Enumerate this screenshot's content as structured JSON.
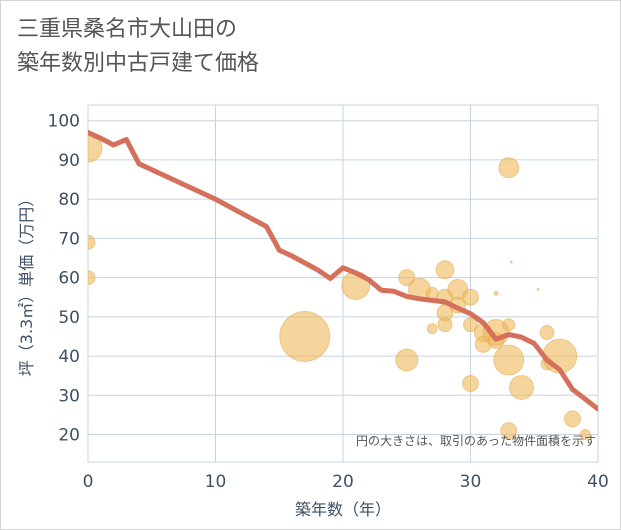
{
  "title_lines": [
    "三重県桑名市大山田の",
    "築年数別中古戸建て価格"
  ],
  "colors": {
    "line": "#d4705c",
    "bubble": "#efb95a",
    "bubble_edge": "#e0a54a",
    "grid": "#c5d4e0",
    "tick_text": "#3e5166"
  },
  "chart_data": {
    "type": "scatter",
    "title": "三重県桑名市大山田の築年数別中古戸建て価格",
    "xlabel": "築年数（年）",
    "ylabel": "坪（3.3㎡）単価（万円）",
    "xlim": [
      0,
      40
    ],
    "ylim": [
      13,
      104
    ],
    "x_ticks": [
      0,
      10,
      20,
      30,
      40
    ],
    "y_ticks": [
      20,
      30,
      40,
      50,
      60,
      70,
      80,
      90,
      100
    ],
    "grid": true,
    "note": "円の大きさは、取引のあった物件面積を示す",
    "series": [
      {
        "kind": "line",
        "points": [
          [
            0,
            97
          ],
          [
            1,
            95.5
          ],
          [
            2,
            93.8
          ],
          [
            3,
            95.2
          ],
          [
            4,
            89
          ],
          [
            6,
            86
          ],
          [
            8,
            83
          ],
          [
            10,
            80
          ],
          [
            12,
            76.5
          ],
          [
            14,
            73
          ],
          [
            15,
            67
          ],
          [
            16,
            65.5
          ],
          [
            18,
            62
          ],
          [
            19,
            59.8
          ],
          [
            20,
            62.5
          ],
          [
            21,
            61.2
          ],
          [
            22,
            59.5
          ],
          [
            23,
            56.8
          ],
          [
            24,
            56.5
          ],
          [
            25,
            55.2
          ],
          [
            26,
            54.6
          ],
          [
            27,
            54.2
          ],
          [
            28,
            53.8
          ],
          [
            29,
            52.2
          ],
          [
            30,
            50.8
          ],
          [
            31,
            48.5
          ],
          [
            32,
            44.3
          ],
          [
            33,
            45.5
          ],
          [
            34,
            44.8
          ],
          [
            35,
            43.2
          ],
          [
            36,
            39
          ],
          [
            37,
            36.5
          ],
          [
            38,
            31.5
          ],
          [
            39,
            29
          ],
          [
            40,
            26.5
          ]
        ]
      },
      {
        "kind": "bubble",
        "points": [
          {
            "x": 0,
            "y": 93,
            "size": 14
          },
          {
            "x": 0,
            "y": 69,
            "size": 7
          },
          {
            "x": 0,
            "y": 60,
            "size": 7
          },
          {
            "x": 17,
            "y": 45,
            "size": 25
          },
          {
            "x": 21,
            "y": 58,
            "size": 14
          },
          {
            "x": 25,
            "y": 60,
            "size": 8
          },
          {
            "x": 25,
            "y": 39,
            "size": 11
          },
          {
            "x": 26,
            "y": 57,
            "size": 11
          },
          {
            "x": 27,
            "y": 56,
            "size": 6
          },
          {
            "x": 27,
            "y": 47,
            "size": 5
          },
          {
            "x": 28,
            "y": 62,
            "size": 9
          },
          {
            "x": 28,
            "y": 55,
            "size": 8
          },
          {
            "x": 28,
            "y": 51,
            "size": 8
          },
          {
            "x": 28,
            "y": 48,
            "size": 7
          },
          {
            "x": 29,
            "y": 57,
            "size": 10
          },
          {
            "x": 29,
            "y": 53,
            "size": 8
          },
          {
            "x": 30,
            "y": 55,
            "size": 8
          },
          {
            "x": 30,
            "y": 48,
            "size": 7
          },
          {
            "x": 30,
            "y": 33,
            "size": 8
          },
          {
            "x": 31,
            "y": 46,
            "size": 9
          },
          {
            "x": 31,
            "y": 43,
            "size": 8
          },
          {
            "x": 32,
            "y": 56,
            "size": 2
          },
          {
            "x": 32,
            "y": 46,
            "size": 13
          },
          {
            "x": 32,
            "y": 44,
            "size": 8
          },
          {
            "x": 33,
            "y": 88,
            "size": 10
          },
          {
            "x": 33,
            "y": 48,
            "size": 6
          },
          {
            "x": 33,
            "y": 39,
            "size": 15
          },
          {
            "x": 33,
            "y": 21,
            "size": 8
          },
          {
            "x": 33.2,
            "y": 64,
            "size": 1
          },
          {
            "x": 34,
            "y": 32,
            "size": 12
          },
          {
            "x": 35.3,
            "y": 57,
            "size": 1
          },
          {
            "x": 36,
            "y": 46,
            "size": 7
          },
          {
            "x": 36,
            "y": 38,
            "size": 6
          },
          {
            "x": 37,
            "y": 40,
            "size": 17
          },
          {
            "x": 38,
            "y": 24,
            "size": 8
          },
          {
            "x": 39,
            "y": 20,
            "size": 5
          }
        ]
      }
    ]
  }
}
